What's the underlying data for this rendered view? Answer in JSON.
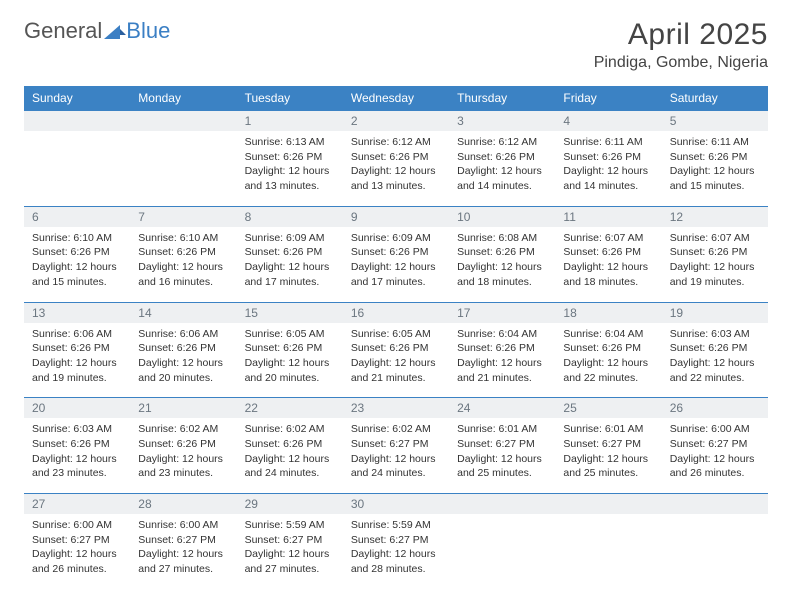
{
  "brand": {
    "part1": "General",
    "part2": "Blue"
  },
  "title": "April 2025",
  "location": "Pindiga, Gombe, Nigeria",
  "colors": {
    "header_bg": "#3b82c4",
    "header_text": "#ffffff",
    "daynum_bg": "#eef0f2",
    "daynum_text": "#6b7680",
    "border": "#3b82c4",
    "body_text": "#333333",
    "brand_gray": "#555555",
    "brand_blue": "#3b7fc4"
  },
  "columns": [
    "Sunday",
    "Monday",
    "Tuesday",
    "Wednesday",
    "Thursday",
    "Friday",
    "Saturday"
  ],
  "weeks": [
    [
      {
        "n": "",
        "sr": "",
        "ss": "",
        "dl": ""
      },
      {
        "n": "",
        "sr": "",
        "ss": "",
        "dl": ""
      },
      {
        "n": "1",
        "sr": "Sunrise: 6:13 AM",
        "ss": "Sunset: 6:26 PM",
        "dl": "Daylight: 12 hours and 13 minutes."
      },
      {
        "n": "2",
        "sr": "Sunrise: 6:12 AM",
        "ss": "Sunset: 6:26 PM",
        "dl": "Daylight: 12 hours and 13 minutes."
      },
      {
        "n": "3",
        "sr": "Sunrise: 6:12 AM",
        "ss": "Sunset: 6:26 PM",
        "dl": "Daylight: 12 hours and 14 minutes."
      },
      {
        "n": "4",
        "sr": "Sunrise: 6:11 AM",
        "ss": "Sunset: 6:26 PM",
        "dl": "Daylight: 12 hours and 14 minutes."
      },
      {
        "n": "5",
        "sr": "Sunrise: 6:11 AM",
        "ss": "Sunset: 6:26 PM",
        "dl": "Daylight: 12 hours and 15 minutes."
      }
    ],
    [
      {
        "n": "6",
        "sr": "Sunrise: 6:10 AM",
        "ss": "Sunset: 6:26 PM",
        "dl": "Daylight: 12 hours and 15 minutes."
      },
      {
        "n": "7",
        "sr": "Sunrise: 6:10 AM",
        "ss": "Sunset: 6:26 PM",
        "dl": "Daylight: 12 hours and 16 minutes."
      },
      {
        "n": "8",
        "sr": "Sunrise: 6:09 AM",
        "ss": "Sunset: 6:26 PM",
        "dl": "Daylight: 12 hours and 17 minutes."
      },
      {
        "n": "9",
        "sr": "Sunrise: 6:09 AM",
        "ss": "Sunset: 6:26 PM",
        "dl": "Daylight: 12 hours and 17 minutes."
      },
      {
        "n": "10",
        "sr": "Sunrise: 6:08 AM",
        "ss": "Sunset: 6:26 PM",
        "dl": "Daylight: 12 hours and 18 minutes."
      },
      {
        "n": "11",
        "sr": "Sunrise: 6:07 AM",
        "ss": "Sunset: 6:26 PM",
        "dl": "Daylight: 12 hours and 18 minutes."
      },
      {
        "n": "12",
        "sr": "Sunrise: 6:07 AM",
        "ss": "Sunset: 6:26 PM",
        "dl": "Daylight: 12 hours and 19 minutes."
      }
    ],
    [
      {
        "n": "13",
        "sr": "Sunrise: 6:06 AM",
        "ss": "Sunset: 6:26 PM",
        "dl": "Daylight: 12 hours and 19 minutes."
      },
      {
        "n": "14",
        "sr": "Sunrise: 6:06 AM",
        "ss": "Sunset: 6:26 PM",
        "dl": "Daylight: 12 hours and 20 minutes."
      },
      {
        "n": "15",
        "sr": "Sunrise: 6:05 AM",
        "ss": "Sunset: 6:26 PM",
        "dl": "Daylight: 12 hours and 20 minutes."
      },
      {
        "n": "16",
        "sr": "Sunrise: 6:05 AM",
        "ss": "Sunset: 6:26 PM",
        "dl": "Daylight: 12 hours and 21 minutes."
      },
      {
        "n": "17",
        "sr": "Sunrise: 6:04 AM",
        "ss": "Sunset: 6:26 PM",
        "dl": "Daylight: 12 hours and 21 minutes."
      },
      {
        "n": "18",
        "sr": "Sunrise: 6:04 AM",
        "ss": "Sunset: 6:26 PM",
        "dl": "Daylight: 12 hours and 22 minutes."
      },
      {
        "n": "19",
        "sr": "Sunrise: 6:03 AM",
        "ss": "Sunset: 6:26 PM",
        "dl": "Daylight: 12 hours and 22 minutes."
      }
    ],
    [
      {
        "n": "20",
        "sr": "Sunrise: 6:03 AM",
        "ss": "Sunset: 6:26 PM",
        "dl": "Daylight: 12 hours and 23 minutes."
      },
      {
        "n": "21",
        "sr": "Sunrise: 6:02 AM",
        "ss": "Sunset: 6:26 PM",
        "dl": "Daylight: 12 hours and 23 minutes."
      },
      {
        "n": "22",
        "sr": "Sunrise: 6:02 AM",
        "ss": "Sunset: 6:26 PM",
        "dl": "Daylight: 12 hours and 24 minutes."
      },
      {
        "n": "23",
        "sr": "Sunrise: 6:02 AM",
        "ss": "Sunset: 6:27 PM",
        "dl": "Daylight: 12 hours and 24 minutes."
      },
      {
        "n": "24",
        "sr": "Sunrise: 6:01 AM",
        "ss": "Sunset: 6:27 PM",
        "dl": "Daylight: 12 hours and 25 minutes."
      },
      {
        "n": "25",
        "sr": "Sunrise: 6:01 AM",
        "ss": "Sunset: 6:27 PM",
        "dl": "Daylight: 12 hours and 25 minutes."
      },
      {
        "n": "26",
        "sr": "Sunrise: 6:00 AM",
        "ss": "Sunset: 6:27 PM",
        "dl": "Daylight: 12 hours and 26 minutes."
      }
    ],
    [
      {
        "n": "27",
        "sr": "Sunrise: 6:00 AM",
        "ss": "Sunset: 6:27 PM",
        "dl": "Daylight: 12 hours and 26 minutes."
      },
      {
        "n": "28",
        "sr": "Sunrise: 6:00 AM",
        "ss": "Sunset: 6:27 PM",
        "dl": "Daylight: 12 hours and 27 minutes."
      },
      {
        "n": "29",
        "sr": "Sunrise: 5:59 AM",
        "ss": "Sunset: 6:27 PM",
        "dl": "Daylight: 12 hours and 27 minutes."
      },
      {
        "n": "30",
        "sr": "Sunrise: 5:59 AM",
        "ss": "Sunset: 6:27 PM",
        "dl": "Daylight: 12 hours and 28 minutes."
      },
      {
        "n": "",
        "sr": "",
        "ss": "",
        "dl": ""
      },
      {
        "n": "",
        "sr": "",
        "ss": "",
        "dl": ""
      },
      {
        "n": "",
        "sr": "",
        "ss": "",
        "dl": ""
      }
    ]
  ]
}
